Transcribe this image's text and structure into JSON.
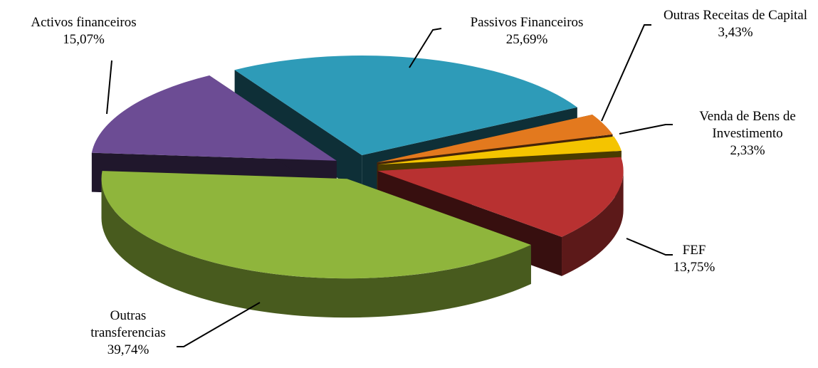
{
  "chart_data": {
    "type": "pie",
    "categories": [
      "Passivos Financeiros",
      "Outras Receitas de Capital",
      "Venda de Bens de Investimento",
      "FEF",
      "Outras transferencias",
      "Activos financeiros"
    ],
    "values": [
      25.69,
      3.43,
      2.33,
      13.75,
      39.74,
      15.07
    ],
    "value_labels": [
      "25,69%",
      "3,43%",
      "2,33%",
      "13,75%",
      "39,74%",
      "15,07%"
    ],
    "colors": [
      "#2e9bb8",
      "#e3791e",
      "#f4c400",
      "#b83131",
      "#8fb53c",
      "#6c4c94"
    ]
  }
}
